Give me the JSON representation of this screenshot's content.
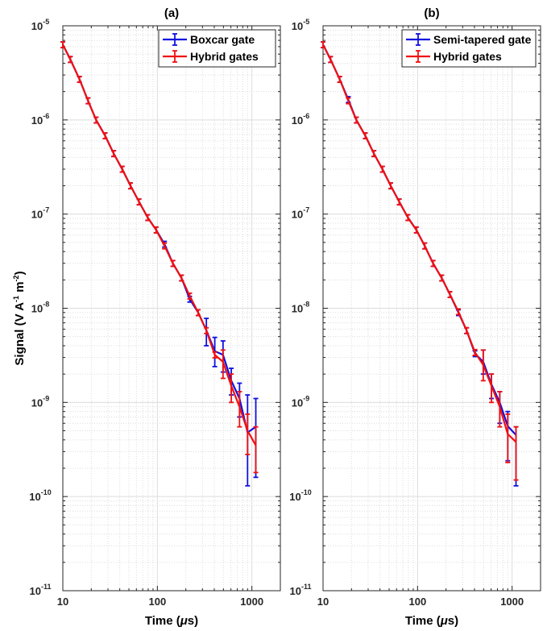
{
  "figure": {
    "ylabel": "Signal (V A",
    "ylabel_sup1": "-1",
    "ylabel_mid": " m",
    "ylabel_sup2": "-2",
    "ylabel_end": ")",
    "xlabel_pre": "Time (",
    "xlabel_mu": "μ",
    "xlabel_post": "s)"
  },
  "colors": {
    "blue": "#1010e0",
    "red": "#f01010",
    "grid": "#dcdcdc",
    "axis": "#262626"
  },
  "chart_data": [
    {
      "type": "line",
      "title": "(a)",
      "xlabel": "Time (μs)",
      "ylabel": "Signal (V A^-1 m^-2)",
      "xscale": "log",
      "yscale": "log",
      "xlim": [
        10,
        2000
      ],
      "ylim": [
        1e-11,
        1e-05
      ],
      "xticks": [
        "10",
        "100",
        "1000"
      ],
      "yticks": [
        {
          "base": "10",
          "exp": "-11"
        },
        {
          "base": "10",
          "exp": "-10"
        },
        {
          "base": "10",
          "exp": "-9"
        },
        {
          "base": "10",
          "exp": "-8"
        },
        {
          "base": "10",
          "exp": "-7"
        },
        {
          "base": "10",
          "exp": "-6"
        },
        {
          "base": "10",
          "exp": "-5"
        }
      ],
      "grid": true,
      "legend_position": "top-right",
      "series": [
        {
          "name": "Boxcar gate",
          "color": "blue",
          "x": [
            10,
            12,
            15,
            18.5,
            22.5,
            28,
            34.5,
            42.5,
            52,
            64,
            79,
            97,
            119,
            146,
            180,
            220,
            270,
            330,
            405,
            495,
            605,
            740,
            900,
            1100
          ],
          "y": [
            6.3e-06,
            4.4e-06,
            2.7e-06,
            1.6e-06,
            1e-06,
            6.8e-07,
            4.4e-07,
            3e-07,
            2e-07,
            1.35e-07,
            9.2e-08,
            6.8e-08,
            4.8e-08,
            3e-08,
            2.1e-08,
            1.25e-08,
            9e-09,
            5.8e-09,
            3.5e-09,
            3.2e-09,
            1.7e-09,
            1.1e-09,
            4.8e-10,
            5.5e-10
          ],
          "y_low": [
            null,
            null,
            null,
            null,
            null,
            null,
            null,
            null,
            null,
            null,
            null,
            null,
            null,
            null,
            null,
            null,
            null,
            4e-09,
            2.4e-09,
            2.1e-09,
            1.2e-09,
            7e-10,
            1.3e-10,
            1.6e-10
          ],
          "y_high": [
            null,
            null,
            null,
            null,
            null,
            null,
            null,
            null,
            null,
            null,
            null,
            null,
            null,
            null,
            null,
            null,
            null,
            7.8e-09,
            4.9e-09,
            4.5e-09,
            2.3e-09,
            1.6e-09,
            1.2e-09,
            1.1e-09
          ]
        },
        {
          "name": "Hybrid gates",
          "color": "red",
          "x": [
            10,
            12,
            15,
            18.5,
            22.5,
            28,
            34.5,
            42.5,
            52,
            64,
            79,
            97,
            119,
            146,
            180,
            220,
            270,
            330,
            405,
            495,
            605,
            740,
            900,
            1100
          ],
          "y": [
            6.3e-06,
            4.4e-06,
            2.7e-06,
            1.6e-06,
            1e-06,
            6.8e-07,
            4.4e-07,
            3e-07,
            2e-07,
            1.35e-07,
            9.2e-08,
            6.8e-08,
            4.6e-08,
            3e-08,
            2.1e-08,
            1.35e-08,
            9e-09,
            5.8e-09,
            3.2e-09,
            2.7e-09,
            1.5e-09,
            9e-10,
            5e-10,
            3.5e-10
          ],
          "y_low": [
            null,
            null,
            null,
            null,
            null,
            null,
            null,
            null,
            null,
            null,
            null,
            null,
            null,
            null,
            null,
            null,
            null,
            null,
            null,
            1.8e-09,
            1e-09,
            5.5e-10,
            2.8e-10,
            1.8e-10
          ],
          "y_high": [
            null,
            null,
            null,
            null,
            null,
            null,
            null,
            null,
            null,
            null,
            null,
            null,
            null,
            null,
            null,
            null,
            null,
            null,
            null,
            3.6e-09,
            2e-09,
            1.3e-09,
            7.5e-10,
            5.5e-10
          ]
        }
      ]
    },
    {
      "type": "line",
      "title": "(b)",
      "xlabel": "Time (μs)",
      "ylabel": "",
      "xscale": "log",
      "yscale": "log",
      "xlim": [
        10,
        2000
      ],
      "ylim": [
        1e-11,
        1e-05
      ],
      "xticks": [
        "10",
        "100",
        "1000"
      ],
      "yticks": [
        {
          "base": "10",
          "exp": "-11"
        },
        {
          "base": "10",
          "exp": "-10"
        },
        {
          "base": "10",
          "exp": "-9"
        },
        {
          "base": "10",
          "exp": "-8"
        },
        {
          "base": "10",
          "exp": "-7"
        },
        {
          "base": "10",
          "exp": "-6"
        },
        {
          "base": "10",
          "exp": "-5"
        }
      ],
      "grid": true,
      "legend_position": "top-right",
      "series": [
        {
          "name": "Semi-tapered gate",
          "color": "blue",
          "x": [
            10,
            12,
            15,
            18.5,
            22.5,
            28,
            34.5,
            42.5,
            52,
            64,
            79,
            97,
            119,
            146,
            180,
            220,
            270,
            330,
            405,
            495,
            605,
            740,
            900,
            1100
          ],
          "y": [
            6.3e-06,
            4.4e-06,
            2.7e-06,
            1.65e-06,
            1e-06,
            6.8e-07,
            4.4e-07,
            3e-07,
            2e-07,
            1.35e-07,
            9.2e-08,
            6.8e-08,
            4.6e-08,
            3e-08,
            2.1e-08,
            1.4e-08,
            9e-09,
            5.8e-09,
            3.3e-09,
            2.7e-09,
            1.55e-09,
            1e-09,
            5.6e-10,
            4.5e-10
          ],
          "y_low": [
            null,
            null,
            null,
            null,
            null,
            null,
            null,
            null,
            null,
            null,
            null,
            null,
            null,
            null,
            null,
            null,
            null,
            null,
            null,
            2e-09,
            1.1e-09,
            6e-10,
            2.4e-10,
            1.3e-10
          ],
          "y_high": [
            null,
            null,
            null,
            null,
            null,
            null,
            null,
            null,
            null,
            null,
            null,
            null,
            null,
            null,
            null,
            null,
            null,
            null,
            null,
            3.6e-09,
            2e-09,
            1.3e-09,
            8e-10,
            5.5e-10
          ]
        },
        {
          "name": "Hybrid gates",
          "color": "red",
          "x": [
            10,
            12,
            15,
            18.5,
            22.5,
            28,
            34.5,
            42.5,
            52,
            64,
            79,
            97,
            119,
            146,
            180,
            220,
            270,
            330,
            405,
            495,
            605,
            740,
            900,
            1100
          ],
          "y": [
            6.3e-06,
            4.4e-06,
            2.7e-06,
            1.6e-06,
            1e-06,
            6.8e-07,
            4.4e-07,
            3e-07,
            2e-07,
            1.35e-07,
            9.2e-08,
            6.8e-08,
            4.6e-08,
            3e-08,
            2.1e-08,
            1.4e-08,
            9.2e-09,
            5.8e-09,
            3.4e-09,
            2.5e-09,
            1.5e-09,
            9e-10,
            4.6e-10,
            3.8e-10
          ],
          "y_low": [
            null,
            null,
            null,
            null,
            null,
            null,
            null,
            null,
            null,
            null,
            null,
            null,
            null,
            null,
            null,
            null,
            null,
            null,
            null,
            1.7e-09,
            1e-09,
            5.5e-10,
            2.3e-10,
            1.5e-10
          ],
          "y_high": [
            null,
            null,
            null,
            null,
            null,
            null,
            null,
            null,
            null,
            null,
            null,
            null,
            null,
            null,
            null,
            null,
            null,
            null,
            null,
            3.6e-09,
            2e-09,
            1.3e-09,
            7.5e-10,
            5.5e-10
          ]
        }
      ]
    }
  ]
}
